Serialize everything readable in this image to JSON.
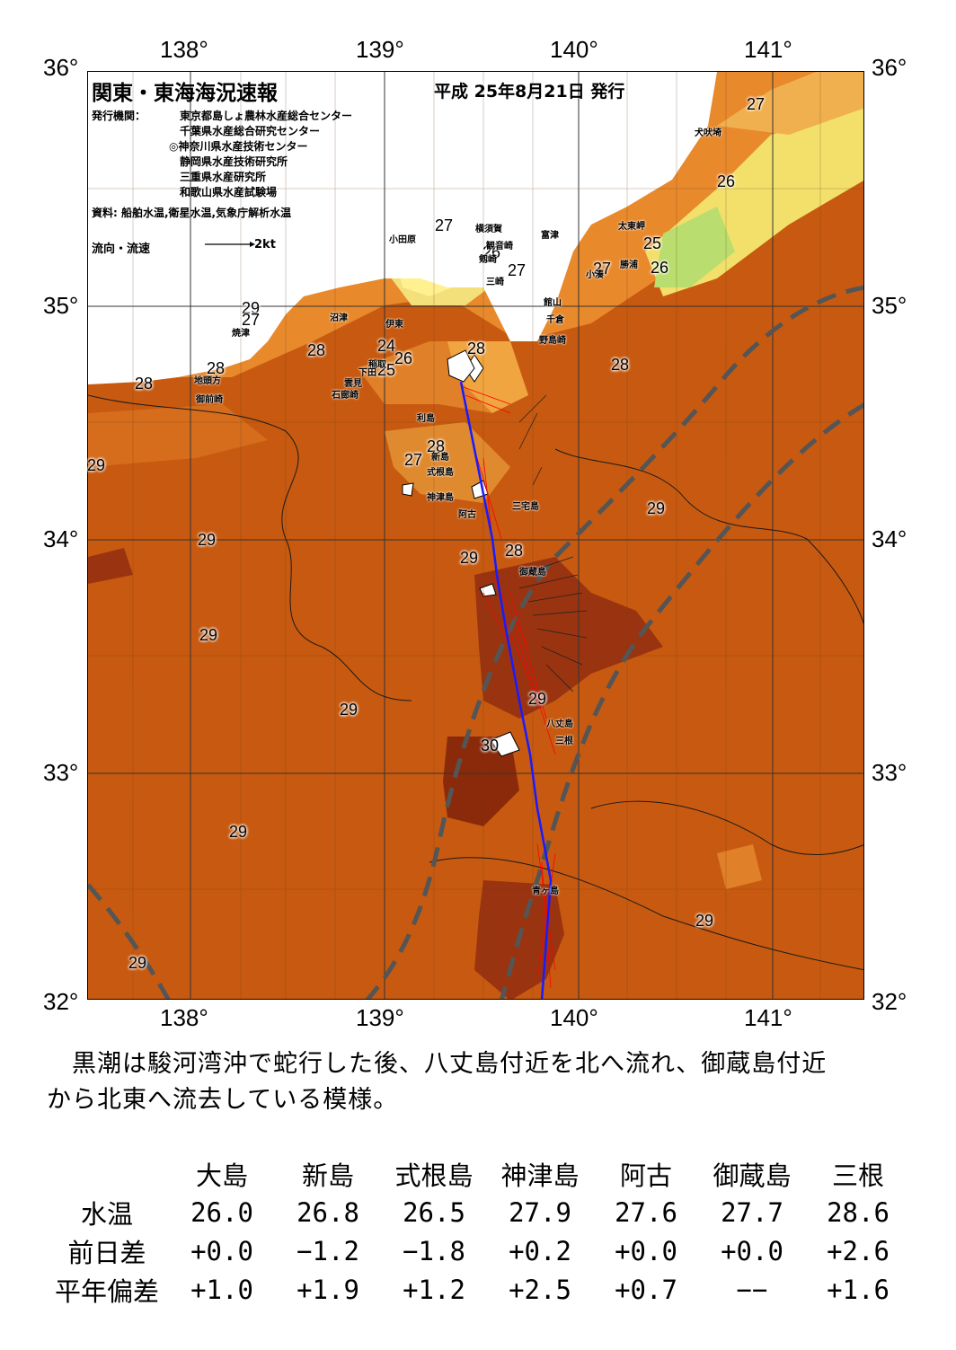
{
  "map": {
    "title": "関東・東海海況速報",
    "issue_date": "平成 25年8月21日 発行",
    "issuer_label": "発行機関：",
    "issuers": [
      "東京都島しょ農林水産総合センター",
      "千葉県水産総合研究センター",
      "◎神奈川県水産技術センター",
      "静岡県水産技術研究所",
      "三重県水産研究所",
      "和歌山県水産試験場"
    ],
    "source": "資料: 船舶水温,衛星水温,気象庁解析水温",
    "legend_label": "流向・流速",
    "legend_speed": "2kt",
    "lon_labels": [
      "138°",
      "139°",
      "140°",
      "141°"
    ],
    "lat_labels": [
      "36°",
      "35°",
      "34°",
      "33°",
      "32°"
    ],
    "temp_labels": [
      "27",
      "26",
      "25",
      "26",
      "27",
      "27",
      "27",
      "26",
      "24",
      "25",
      "26",
      "28",
      "28",
      "28",
      "29",
      "27",
      "28",
      "28",
      "28",
      "27",
      "29",
      "29",
      "28",
      "29",
      "29",
      "29",
      "29",
      "30",
      "29",
      "29",
      "29"
    ],
    "place_names": [
      "犬吠埼",
      "太東岬",
      "勝浦",
      "小湊",
      "富津",
      "横須賀",
      "観音崎",
      "剱崎",
      "三崎",
      "館山",
      "千倉",
      "野島崎",
      "小田原",
      "沼津",
      "伊東",
      "稲取",
      "下田",
      "雲見",
      "石廊崎",
      "焼津",
      "御前崎",
      "地頭方",
      "利島",
      "新島",
      "式根島",
      "神津島",
      "三宅島",
      "阿古",
      "御蔵島",
      "八丈島",
      "三根",
      "青ヶ島"
    ],
    "colors": {
      "land": "#ffffff",
      "ocean_warm": "#c75a10",
      "ocean_hot": "#8b2a0a",
      "kuroshio_axis": "#1a1aff",
      "current_arrows_red": "#ff0000",
      "mean_path": "#555555"
    }
  },
  "summary": {
    "line1": "黒潮は駿河湾沖で蛇行した後、八丈島付近を北へ流れ、御蔵島付近",
    "line2": "から北東へ流去している模様。"
  },
  "table": {
    "columns": [
      "大島",
      "新島",
      "式根島",
      "神津島",
      "阿古",
      "御蔵島",
      "三根"
    ],
    "rows": [
      {
        "label": "水温",
        "values": [
          "26.0",
          "26.8",
          "26.5",
          "27.9",
          "27.6",
          "27.7",
          "28.6"
        ]
      },
      {
        "label": "前日差",
        "values": [
          "+0.0",
          "−1.2",
          "−1.8",
          "+0.2",
          "+0.0",
          "+0.0",
          "+2.6"
        ]
      },
      {
        "label": "平年偏差",
        "values": [
          "+1.0",
          "+1.9",
          "+1.2",
          "+2.5",
          "+0.7",
          "−−",
          "+1.6"
        ]
      }
    ]
  }
}
